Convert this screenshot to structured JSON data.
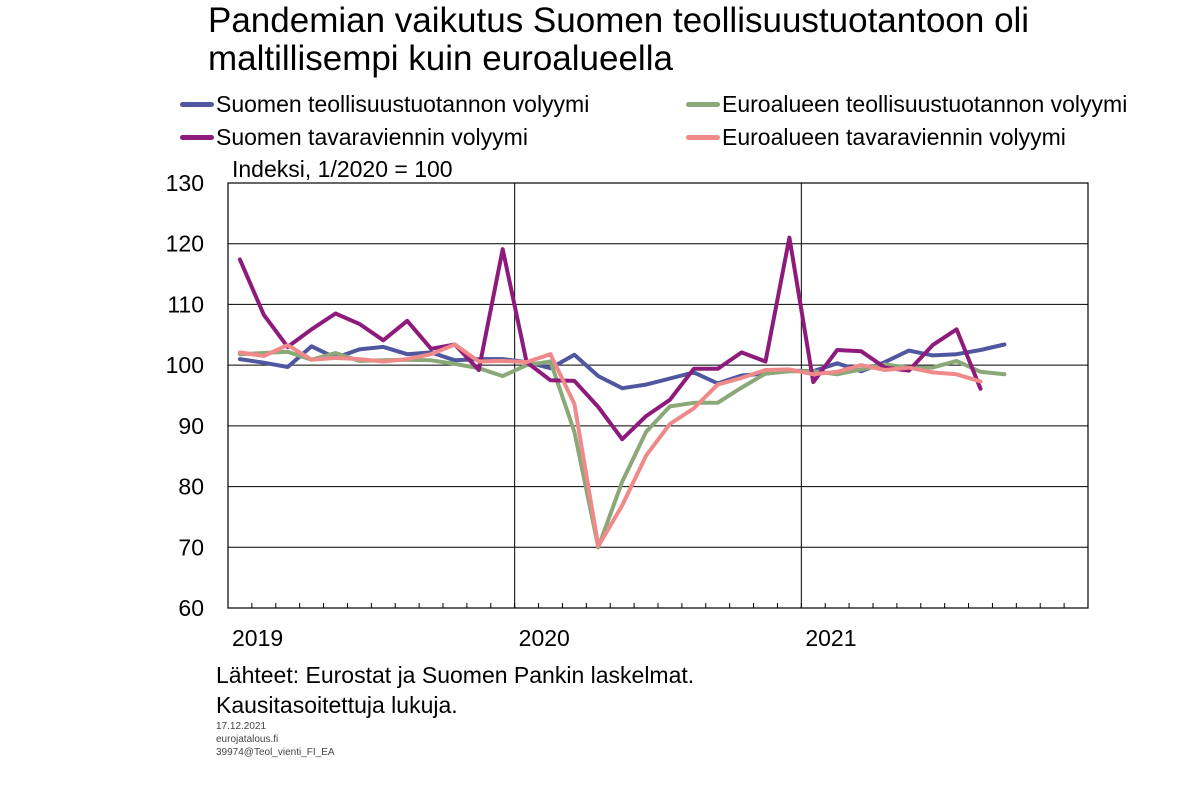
{
  "header": {
    "title_line1": "Pandemian vaikutus Suomen teollisuustuotantoon oli",
    "title_line2": "maltillisempi kuin euroalueella"
  },
  "unit_label": "Indeksi, 1/2020 = 100",
  "source": {
    "line1": "Lähteet: Eurostat ja Suomen Pankin laskelmat.",
    "line2": "Kausitasoitettuja  lukuja."
  },
  "meta": {
    "date": "17.12.2021",
    "site": "eurojatalous.fi",
    "code": "39974@Teol_vienti_FI_EA"
  },
  "chart_data": {
    "type": "line",
    "ylim": [
      60,
      130
    ],
    "yticks": [
      "60",
      "70",
      "80",
      "90",
      "100",
      "110",
      "120",
      "130"
    ],
    "year_labels": [
      "2019",
      "2020",
      "2021"
    ],
    "x_start": "2019-01",
    "months": 36,
    "grid": true,
    "legend_position": "top",
    "series": [
      {
        "name": "Suomen teollisuustuotannon volyymi",
        "color": "#4f57a0",
        "values": [
          101,
          100.4,
          99.7,
          103.1,
          101.2,
          102.6,
          103.0,
          101.8,
          102.1,
          100.8,
          101.0,
          101.0,
          100.5,
          99.5,
          101.7,
          98.2,
          96.2,
          96.8,
          97.8,
          98.8,
          97.0,
          98.3,
          98.6,
          99.1,
          99.0,
          100.3,
          99.0,
          100.5,
          102.4,
          101.6,
          101.8,
          102.5,
          103.4
        ]
      },
      {
        "name": "Euroalueen teollisuustuotannon volyymi",
        "color": "#8aa878",
        "values": [
          101.8,
          102.0,
          102.2,
          100.9,
          102.0,
          100.7,
          100.8,
          100.9,
          100.8,
          100.2,
          99.5,
          98.2,
          100.0,
          100.6,
          89.0,
          70.0,
          80.8,
          89.0,
          93.2,
          93.8,
          93.8,
          96.3,
          98.6,
          99.0,
          99.0,
          98.5,
          99.3,
          100.1,
          99.6,
          99.6,
          100.7,
          98.9,
          98.5
        ]
      },
      {
        "name": "Suomen tavaraviennin volyymi",
        "color": "#8e1b7c",
        "values": [
          117.4,
          108.3,
          103.0,
          105.9,
          108.5,
          106.8,
          104.1,
          107.3,
          102.7,
          103.4,
          99.2,
          119.1,
          100.5,
          97.5,
          97.4,
          93.1,
          87.8,
          91.6,
          94.3,
          99.4,
          99.4,
          102.1,
          100.6,
          121.0,
          97.2,
          102.5,
          102.3,
          99.6,
          99.1,
          103.3,
          105.9,
          96.1
        ]
      },
      {
        "name": "Euroalueen tavaraviennin volyymi",
        "color": "#f08a8a",
        "values": [
          102.1,
          101.5,
          103.3,
          100.9,
          101.2,
          101.0,
          100.6,
          101.0,
          101.8,
          103.4,
          100.6,
          100.7,
          100.5,
          101.8,
          93.6,
          70.2,
          76.9,
          85.1,
          90.3,
          92.9,
          96.8,
          97.9,
          99.2,
          99.3,
          98.5,
          98.9,
          100.0,
          99.2,
          99.6,
          98.8,
          98.5,
          97.3
        ]
      }
    ]
  }
}
